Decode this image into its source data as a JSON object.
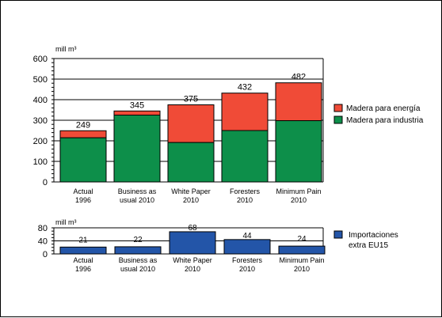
{
  "chart_data": [
    {
      "type": "bar",
      "stacked": true,
      "ylabel": "mill m³",
      "ylim": [
        0,
        600
      ],
      "yticks": [
        0,
        100,
        200,
        300,
        400,
        500,
        600
      ],
      "grid": "horizontal",
      "legend_position": "right",
      "categories": [
        [
          "Actual",
          "1996"
        ],
        [
          "Business as",
          "usual 2010"
        ],
        [
          "White Paper",
          "2010"
        ],
        [
          "Foresters",
          "2010"
        ],
        [
          "Minimum Pain",
          "2010"
        ]
      ],
      "totals": [
        "249",
        "345",
        "375",
        "432",
        "482"
      ],
      "series": [
        {
          "name": "Madera para industria",
          "color": "#0d8f4a",
          "values": [
            215,
            325,
            192,
            250,
            298
          ]
        },
        {
          "name": "Madera para energía",
          "color": "#f04b37",
          "values": [
            34,
            20,
            183,
            182,
            184
          ]
        }
      ]
    },
    {
      "type": "bar",
      "ylabel": "mill m³",
      "ylim": [
        0,
        80
      ],
      "yticks": [
        0,
        40,
        80
      ],
      "grid": "horizontal",
      "legend_position": "right",
      "categories": [
        [
          "Actual",
          "1996"
        ],
        [
          "Business as",
          "usual 2010"
        ],
        [
          "White Paper",
          "2010"
        ],
        [
          "Foresters",
          "2010"
        ],
        [
          "Minimum Pain",
          "2010"
        ]
      ],
      "series": [
        {
          "name": "Importaciones extra EU15",
          "legend_lines": [
            "Importaciones",
            "extra EU15"
          ],
          "color": "#2355a8",
          "values": [
            21,
            22,
            68,
            44,
            24
          ],
          "labels": [
            "21",
            "22",
            "68",
            "44",
            "24"
          ]
        }
      ]
    }
  ]
}
